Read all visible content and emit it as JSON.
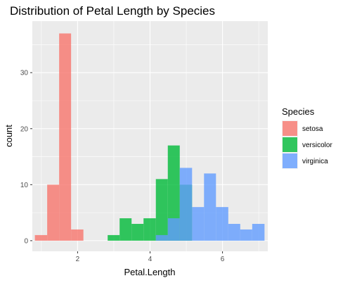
{
  "chart_data": {
    "type": "bar",
    "subtype": "histogram",
    "title": "Distribution of Petal Length by Species",
    "xlabel": "Petal.Length",
    "ylabel": "count",
    "xlim": [
      0.75,
      7.25
    ],
    "ylim": [
      -1.9,
      39.2
    ],
    "grid": true,
    "bin_width": 0.33,
    "x_ticks": [
      {
        "value": 2,
        "label": "2"
      },
      {
        "value": 4,
        "label": "4"
      },
      {
        "value": 6,
        "label": "6"
      }
    ],
    "y_ticks": [
      {
        "value": 0,
        "label": "0"
      },
      {
        "value": 10,
        "label": "10"
      },
      {
        "value": 20,
        "label": "20"
      },
      {
        "value": 30,
        "label": "30"
      }
    ],
    "legend": {
      "title": "Species",
      "position": "right"
    },
    "series": [
      {
        "name": "setosa",
        "color": "#F8766D",
        "bins": [
          {
            "start": 0.82,
            "end": 1.16,
            "count": 1
          },
          {
            "start": 1.16,
            "end": 1.49,
            "count": 10
          },
          {
            "start": 1.49,
            "end": 1.82,
            "count": 37
          },
          {
            "start": 1.82,
            "end": 2.16,
            "count": 2
          }
        ]
      },
      {
        "name": "versicolor",
        "color": "#00BA38",
        "bins": [
          {
            "start": 2.83,
            "end": 3.16,
            "count": 1
          },
          {
            "start": 3.16,
            "end": 3.49,
            "count": 4
          },
          {
            "start": 3.49,
            "end": 3.82,
            "count": 3
          },
          {
            "start": 3.82,
            "end": 4.16,
            "count": 4
          },
          {
            "start": 4.16,
            "end": 4.49,
            "count": 11
          },
          {
            "start": 4.49,
            "end": 4.82,
            "count": 17
          },
          {
            "start": 4.82,
            "end": 5.16,
            "count": 10
          }
        ]
      },
      {
        "name": "virginica",
        "color": "#619CFF",
        "bins": [
          {
            "start": 4.16,
            "end": 4.49,
            "count": 1
          },
          {
            "start": 4.49,
            "end": 4.82,
            "count": 4
          },
          {
            "start": 4.82,
            "end": 5.16,
            "count": 13
          },
          {
            "start": 5.16,
            "end": 5.49,
            "count": 6
          },
          {
            "start": 5.49,
            "end": 5.82,
            "count": 12
          },
          {
            "start": 5.82,
            "end": 6.16,
            "count": 6
          },
          {
            "start": 6.16,
            "end": 6.49,
            "count": 3
          },
          {
            "start": 6.49,
            "end": 6.82,
            "count": 2
          },
          {
            "start": 6.82,
            "end": 7.16,
            "count": 3
          }
        ]
      }
    ]
  }
}
